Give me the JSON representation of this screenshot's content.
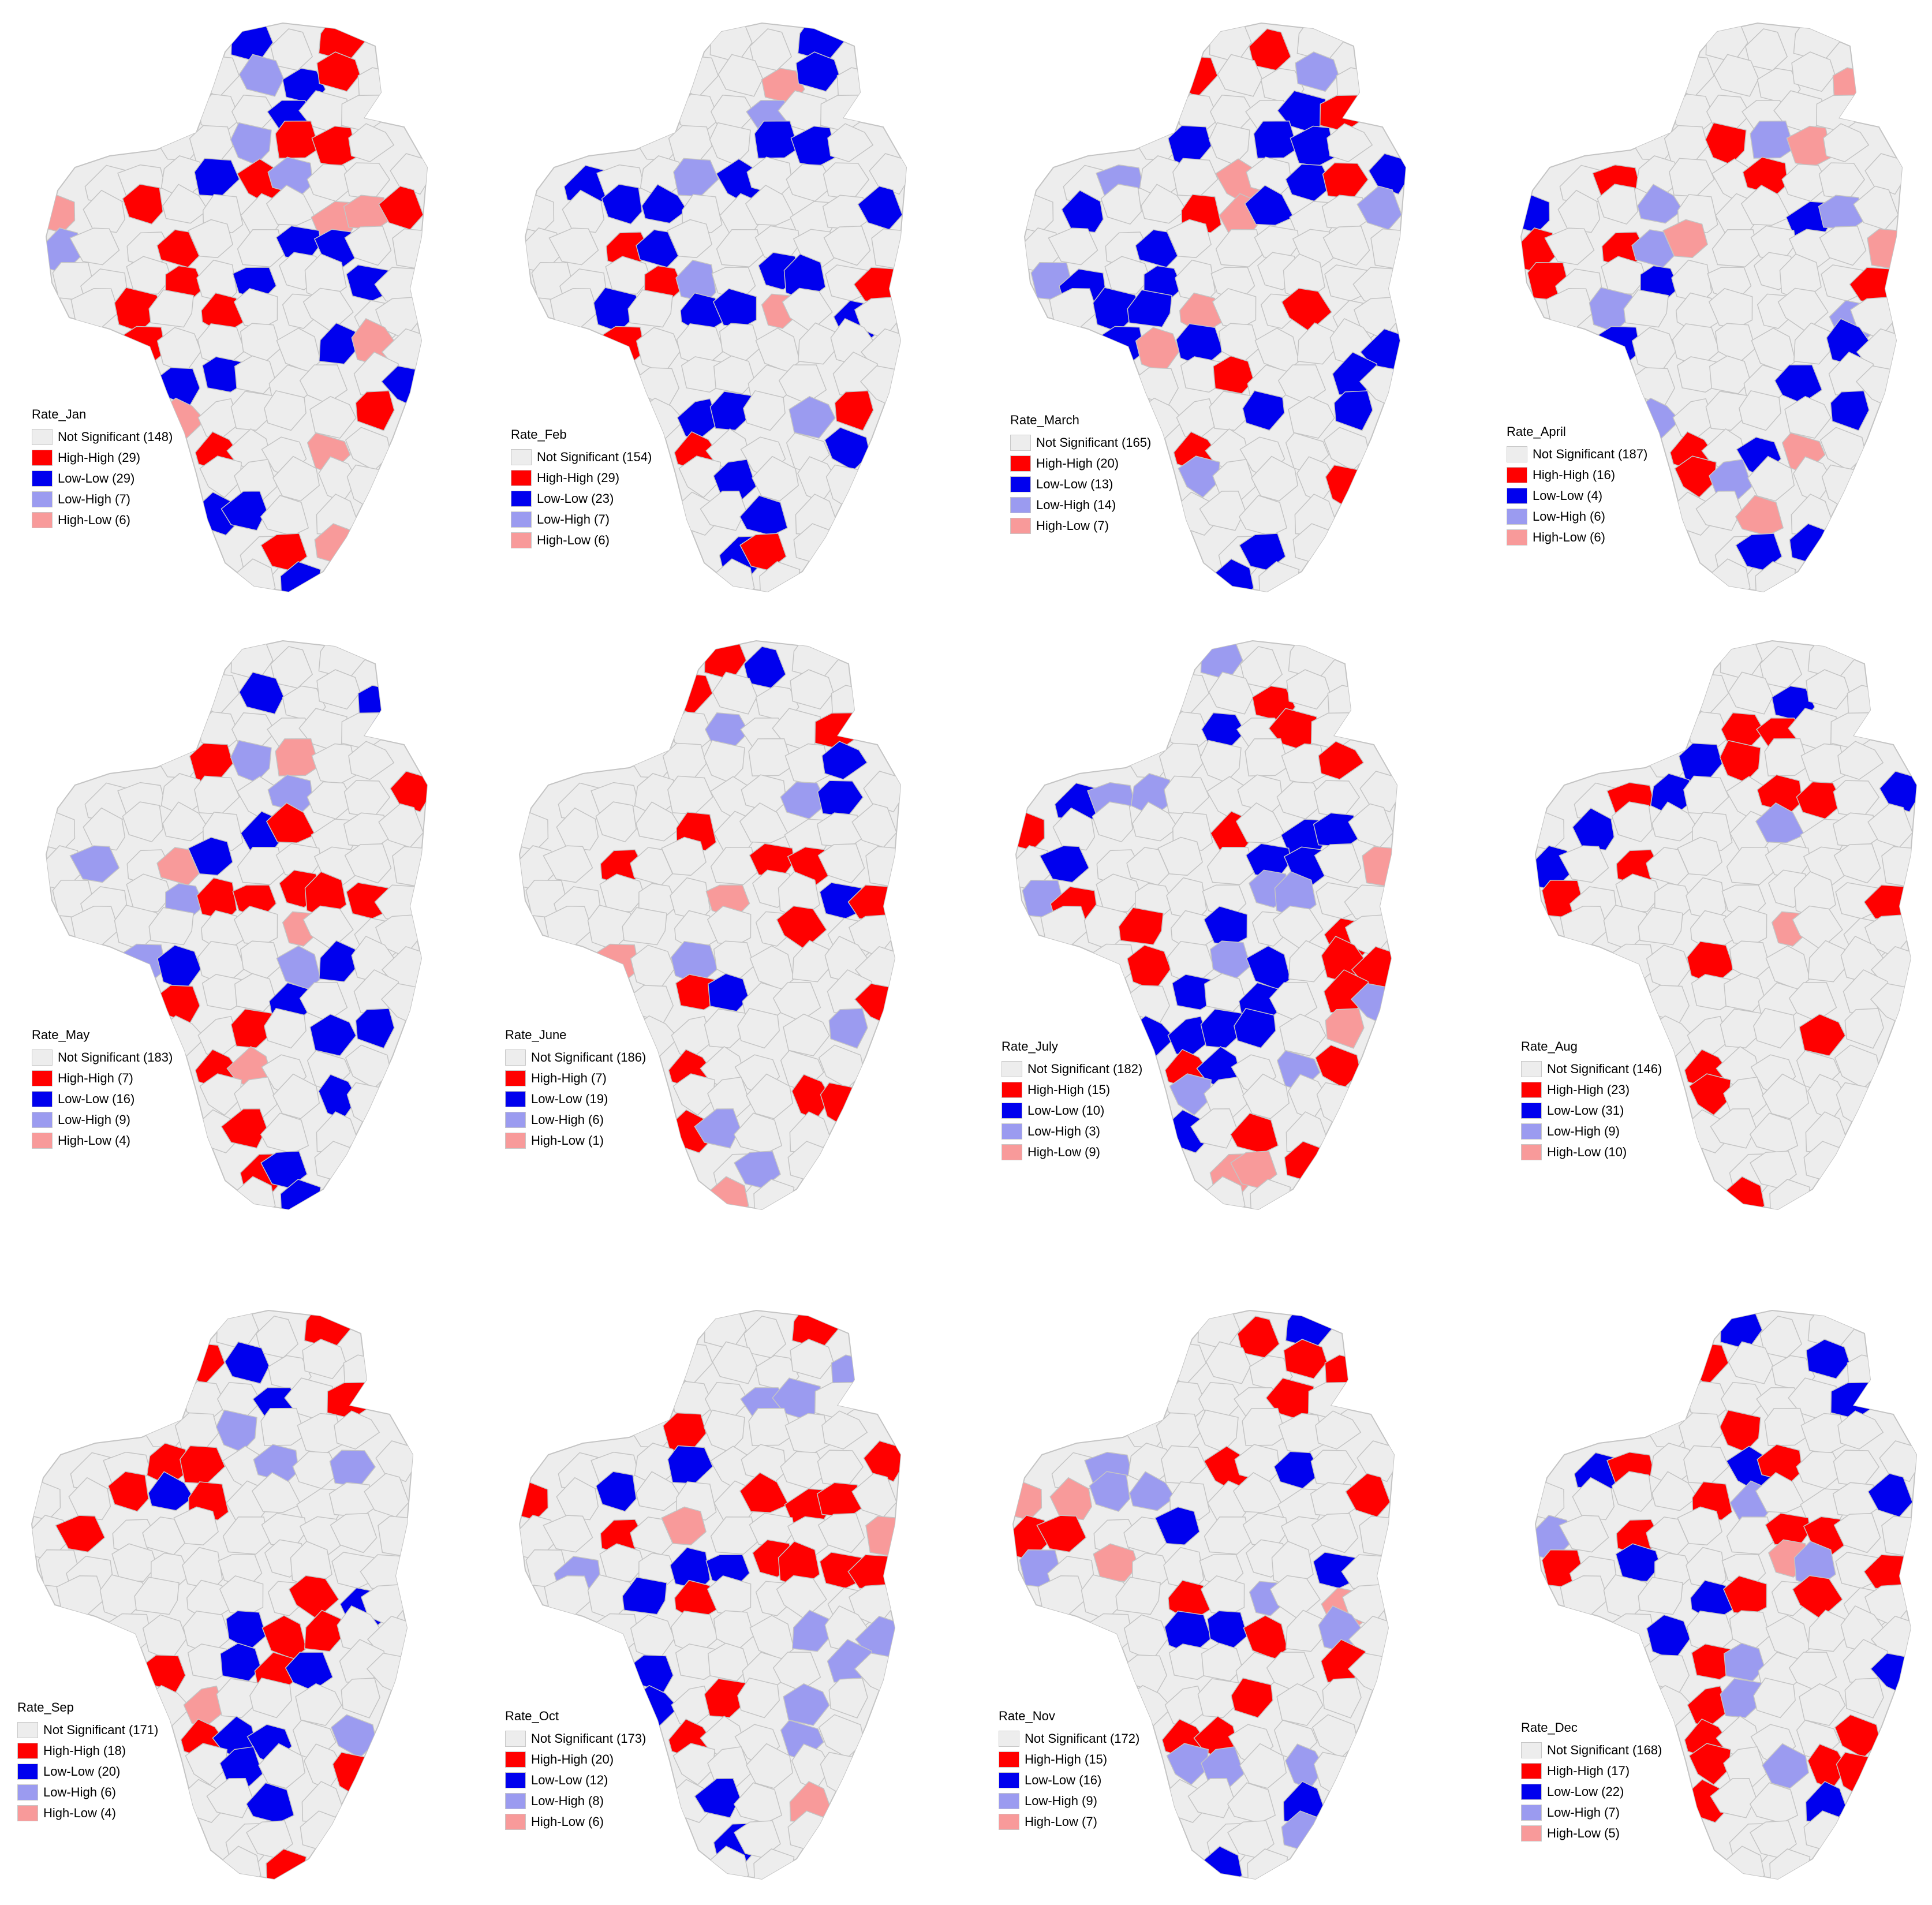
{
  "colors": {
    "not_significant": "#ededed",
    "high_high": "#ff0000",
    "low_low": "#0000ee",
    "low_high": "#9b9bf0",
    "high_low": "#f89a9a",
    "outline": "#c4c4c4"
  },
  "maps": [
    {
      "title": "Rate_Jan",
      "legend": [
        "Not Significant (148)",
        "High-High (29)",
        "Low-Low (29)",
        "Low-High (7)",
        "High-Low (6)"
      ]
    },
    {
      "title": "Rate_Feb",
      "legend": [
        "Not Significant (154)",
        "High-High (29)",
        "Low-Low (23)",
        "Low-High (7)",
        "High-Low (6)"
      ]
    },
    {
      "title": "Rate_March",
      "legend": [
        "Not Significant (165)",
        "High-High (20)",
        "Low-Low (13)",
        "Low-High (14)",
        "High-Low (7)"
      ]
    },
    {
      "title": "Rate_April",
      "legend": [
        "Not Significant (187)",
        "High-High (16)",
        "Low-Low (4)",
        "Low-High (6)",
        "High-Low (6)"
      ]
    },
    {
      "title": "Rate_May",
      "legend": [
        "Not Significant (183)",
        "High-High (7)",
        "Low-Low (16)",
        "Low-High (9)",
        "High-Low (4)"
      ]
    },
    {
      "title": "Rate_June",
      "legend": [
        "Not Significant (186)",
        "High-High (7)",
        "Low-Low (19)",
        "Low-High (6)",
        "High-Low (1)"
      ]
    },
    {
      "title": "Rate_July",
      "legend": [
        "Not Significant (182)",
        "High-High (15)",
        "Low-Low (10)",
        "Low-High (3)",
        "High-Low (9)"
      ]
    },
    {
      "title": "Rate_Aug",
      "legend": [
        "Not Significant (146)",
        "High-High (23)",
        "Low-Low (31)",
        "Low-High (9)",
        "High-Low (10)"
      ]
    },
    {
      "title": "Rate_Sep",
      "legend": [
        "Not Significant (171)",
        "High-High (18)",
        "Low-Low (20)",
        "Low-High (6)",
        "High-Low (4)"
      ]
    },
    {
      "title": "Rate_Oct",
      "legend": [
        "Not Significant (173)",
        "High-High (20)",
        "Low-Low (12)",
        "Low-High (8)",
        "High-Low (6)"
      ]
    },
    {
      "title": "Rate_Nov",
      "legend": [
        "Not Significant (172)",
        "High-High (15)",
        "Low-Low (16)",
        "Low-High (9)",
        "High-Low (7)"
      ]
    },
    {
      "title": "Rate_Dec",
      "legend": [
        "Not Significant (168)",
        "High-High (17)",
        "Low-Low (22)",
        "Low-High (7)",
        "High-Low (5)"
      ]
    }
  ]
}
